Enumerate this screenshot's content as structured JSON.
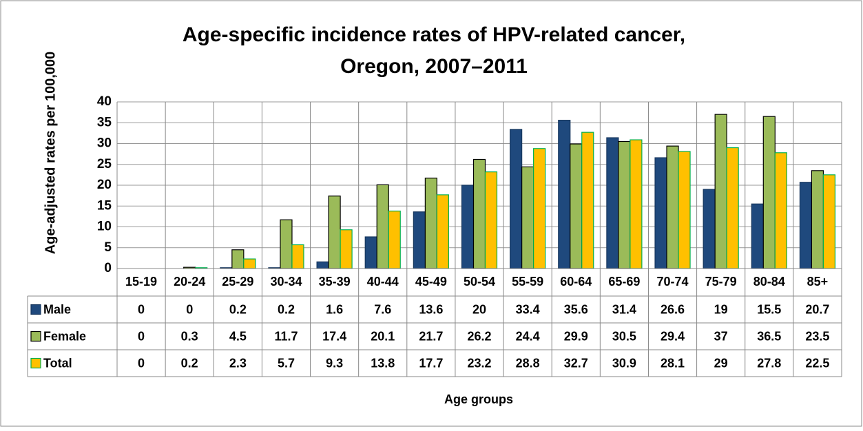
{
  "chart_data": {
    "type": "bar",
    "title": "Age-specific incidence rates of HPV-related cancer,",
    "subtitle": "Oregon, 2007–2011",
    "y_label": "Age-adjusted rates per 100,000",
    "x_label": "Age groups",
    "categories": [
      "15-19",
      "20-24",
      "25-29",
      "30-34",
      "35-39",
      "40-44",
      "45-49",
      "50-54",
      "55-59",
      "60-64",
      "65-69",
      "70-74",
      "75-79",
      "80-84",
      "85+"
    ],
    "series": [
      {
        "name": "Male",
        "color": "#1f497d",
        "values": [
          0,
          0,
          0.2,
          0.2,
          1.6,
          7.6,
          13.6,
          20,
          33.4,
          35.6,
          31.4,
          26.6,
          19,
          15.5,
          20.7
        ]
      },
      {
        "name": "Female",
        "color": "#9bbb59",
        "values": [
          0,
          0.3,
          4.5,
          11.7,
          17.4,
          20.1,
          21.7,
          26.2,
          24.4,
          29.9,
          30.5,
          29.4,
          37,
          36.5,
          23.5
        ]
      },
      {
        "name": "Total",
        "color": "#ffc000",
        "values": [
          0,
          0.2,
          2.3,
          5.7,
          9.3,
          13.8,
          17.7,
          23.2,
          28.8,
          32.7,
          30.9,
          28.1,
          29,
          27.8,
          22.5
        ]
      }
    ],
    "ylim": [
      0,
      40
    ],
    "yticks": [
      0,
      5,
      10,
      15,
      20,
      25,
      30,
      35,
      40
    ],
    "grid": true
  }
}
